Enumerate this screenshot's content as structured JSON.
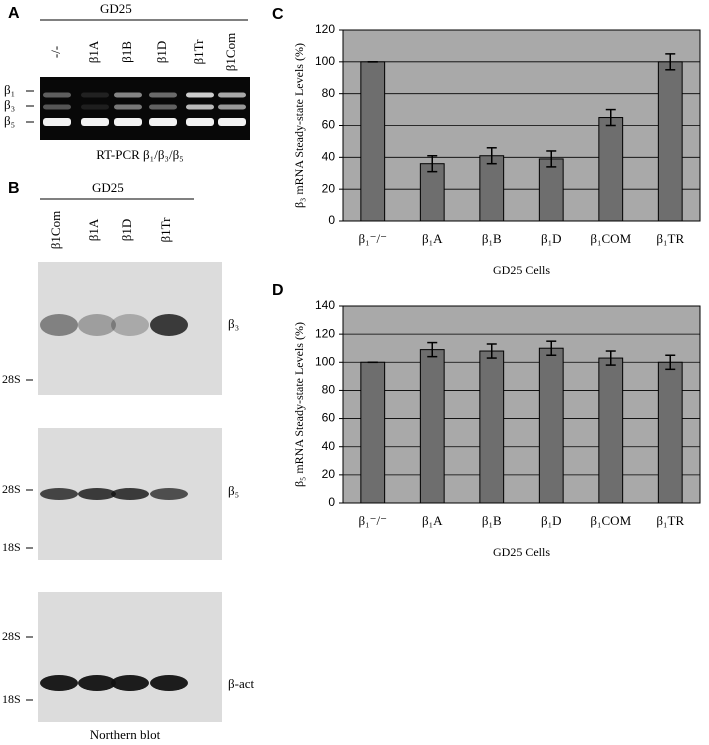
{
  "chart_data": [
    {
      "type": "bar",
      "panel": "C",
      "ylabel": "β₃ mRNA Steady-state Levels (%)",
      "xlabel": "GD25 Cells",
      "categories": [
        "β₁⁻/⁻",
        "β₁A",
        "β₁B",
        "β₁D",
        "β₁COM",
        "β₁TR"
      ],
      "values": [
        100,
        36,
        41,
        39,
        65,
        100
      ],
      "errors": [
        0,
        5,
        5,
        5,
        5,
        5
      ],
      "color": "#6e6e6e",
      "background": "#a9a9a9",
      "ylim": [
        0,
        120
      ],
      "yticks": [
        0,
        20,
        40,
        60,
        80,
        100,
        120
      ],
      "grid": true
    },
    {
      "type": "bar",
      "panel": "D",
      "ylabel": "β₅ mRNA Steady-state Levels (%)",
      "xlabel": "GD25 Cells",
      "categories": [
        "β₁⁻/⁻",
        "β₁A",
        "β₁B",
        "β₁D",
        "β₁COM",
        "β₁TR"
      ],
      "values": [
        100,
        109,
        108,
        110,
        103,
        100
      ],
      "errors": [
        0,
        5,
        5,
        5,
        5,
        5
      ],
      "color": "#6e6e6e",
      "background": "#a9a9a9",
      "ylim": [
        0,
        140
      ],
      "yticks": [
        0,
        20,
        40,
        60,
        80,
        100,
        120,
        140
      ],
      "grid": true
    }
  ],
  "gels": [
    {
      "letter": "A",
      "header": "GD25",
      "lanes": [
        "-/-",
        "β1A",
        "β1B",
        "β1D",
        "β1Tr",
        "β1Com"
      ],
      "band_labels": [
        "β₁",
        "β₃",
        "β₅"
      ],
      "caption": "RT-PCR β₁/β₃/β₅"
    },
    {
      "letter": "B",
      "header": "GD25",
      "lanes": [
        "β1Com",
        "β1A",
        "β1D",
        "β1Tr"
      ],
      "blots": [
        {
          "label": "β₃",
          "markers": [
            "28S"
          ]
        },
        {
          "label": "β₅",
          "markers": [
            "28S",
            "18S"
          ]
        },
        {
          "label": "β-act",
          "markers": [
            "28S",
            "18S"
          ]
        }
      ],
      "caption": "Northern blot"
    }
  ]
}
